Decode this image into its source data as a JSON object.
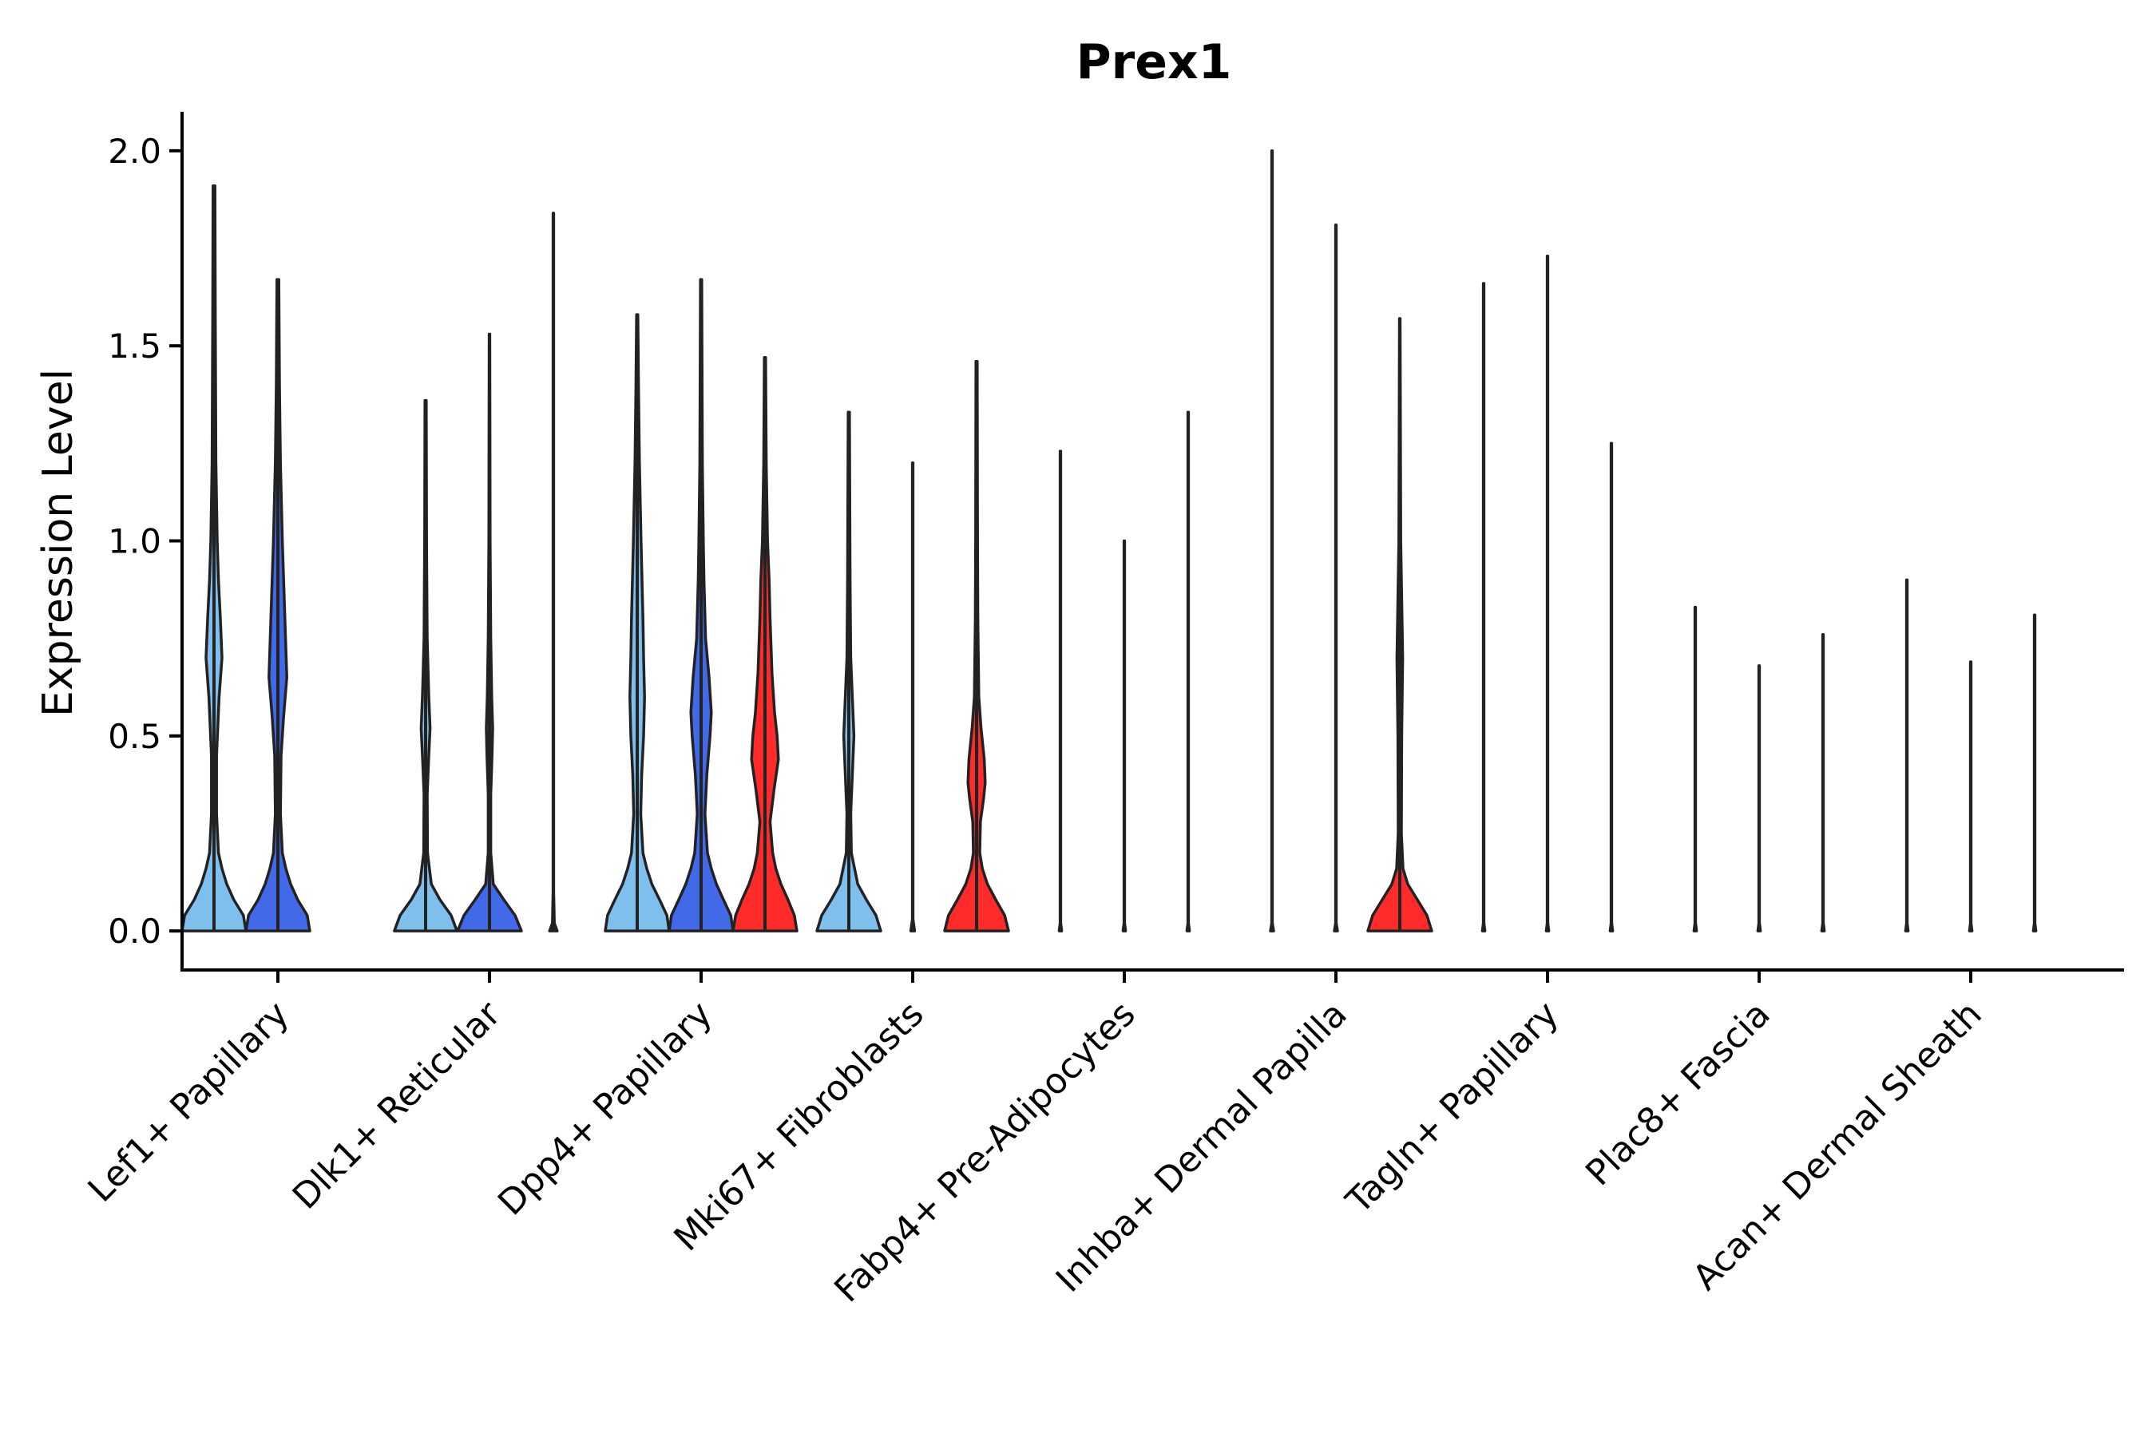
{
  "chart_data": {
    "type": "violin",
    "title": "Prex1",
    "xlabel": "",
    "ylabel": "Expression Level",
    "ylim": [
      -0.1,
      2.1
    ],
    "yticks": [
      0.0,
      0.5,
      1.0,
      1.5,
      2.0
    ],
    "ytick_labels": [
      "0.0",
      "0.5",
      "1.0",
      "1.5",
      "2.0"
    ],
    "categories": [
      "Lef1+ Papillary",
      "Dlk1+ Reticular",
      "Dpp4+ Papillary",
      "Mki67+ Fibroblasts",
      "Fabp4+ Pre-Adipocytes",
      "Inhba+ Dermal Papilla",
      "Tagln+ Papillary",
      "Plac8+ Fascia",
      "Acan+ Dermal Sheath"
    ],
    "groups": [
      {
        "name": "group-1",
        "color": "#7FBFEE"
      },
      {
        "name": "group-2",
        "color": "#4169E8"
      },
      {
        "name": "group-3",
        "color": "#FF2A2A"
      }
    ],
    "violins": [
      {
        "category": 0,
        "group": 0,
        "max": 1.91,
        "profile": [
          [
            0,
            1
          ],
          [
            0.04,
            0.92
          ],
          [
            0.08,
            0.62
          ],
          [
            0.12,
            0.4
          ],
          [
            0.16,
            0.25
          ],
          [
            0.2,
            0.14
          ],
          [
            0.3,
            0.08
          ],
          [
            0.45,
            0.08
          ],
          [
            0.6,
            0.16
          ],
          [
            0.7,
            0.25
          ],
          [
            0.8,
            0.2
          ],
          [
            0.9,
            0.14
          ],
          [
            1.0,
            0.1
          ],
          [
            1.2,
            0.06
          ],
          [
            1.4,
            0.05
          ],
          [
            1.6,
            0.04
          ],
          [
            1.91,
            0.03
          ]
        ]
      },
      {
        "category": 0,
        "group": 1,
        "max": 1.67,
        "profile": [
          [
            0,
            1
          ],
          [
            0.04,
            0.92
          ],
          [
            0.08,
            0.62
          ],
          [
            0.12,
            0.4
          ],
          [
            0.16,
            0.25
          ],
          [
            0.2,
            0.14
          ],
          [
            0.3,
            0.08
          ],
          [
            0.45,
            0.1
          ],
          [
            0.55,
            0.18
          ],
          [
            0.65,
            0.28
          ],
          [
            0.75,
            0.24
          ],
          [
            0.85,
            0.2
          ],
          [
            1.0,
            0.14
          ],
          [
            1.2,
            0.08
          ],
          [
            1.4,
            0.05
          ],
          [
            1.67,
            0.03
          ]
        ]
      },
      {
        "category": 1,
        "group": 0,
        "max": 1.36,
        "profile": [
          [
            0,
            0.98
          ],
          [
            0.04,
            0.8
          ],
          [
            0.08,
            0.45
          ],
          [
            0.12,
            0.18
          ],
          [
            0.2,
            0.06
          ],
          [
            0.35,
            0.05
          ],
          [
            0.45,
            0.1
          ],
          [
            0.52,
            0.14
          ],
          [
            0.6,
            0.1
          ],
          [
            0.75,
            0.05
          ],
          [
            1.0,
            0.03
          ],
          [
            1.36,
            0.02
          ]
        ]
      },
      {
        "category": 1,
        "group": 1,
        "max": 1.53,
        "profile": [
          [
            0,
            1
          ],
          [
            0.04,
            0.8
          ],
          [
            0.08,
            0.45
          ],
          [
            0.12,
            0.12
          ],
          [
            0.2,
            0.04
          ],
          [
            0.35,
            0.04
          ],
          [
            0.45,
            0.08
          ],
          [
            0.52,
            0.1
          ],
          [
            0.6,
            0.07
          ],
          [
            0.75,
            0.04
          ],
          [
            1.0,
            0.02
          ],
          [
            1.53,
            0.01
          ]
        ]
      },
      {
        "category": 1,
        "group": 2,
        "max": 1.84,
        "profile": [
          [
            0,
            0.12
          ],
          [
            0.02,
            0.03
          ],
          [
            0.1,
            0.01
          ],
          [
            1.84,
            0.01
          ]
        ]
      },
      {
        "category": 2,
        "group": 0,
        "max": 1.58,
        "profile": [
          [
            0,
            1
          ],
          [
            0.04,
            0.93
          ],
          [
            0.08,
            0.7
          ],
          [
            0.12,
            0.46
          ],
          [
            0.16,
            0.3
          ],
          [
            0.2,
            0.18
          ],
          [
            0.3,
            0.11
          ],
          [
            0.4,
            0.14
          ],
          [
            0.5,
            0.2
          ],
          [
            0.6,
            0.23
          ],
          [
            0.7,
            0.2
          ],
          [
            0.8,
            0.18
          ],
          [
            0.9,
            0.15
          ],
          [
            1.0,
            0.12
          ],
          [
            1.2,
            0.07
          ],
          [
            1.4,
            0.04
          ],
          [
            1.58,
            0.02
          ]
        ]
      },
      {
        "category": 2,
        "group": 1,
        "max": 1.67,
        "profile": [
          [
            0,
            1
          ],
          [
            0.04,
            0.93
          ],
          [
            0.08,
            0.7
          ],
          [
            0.12,
            0.48
          ],
          [
            0.16,
            0.32
          ],
          [
            0.2,
            0.2
          ],
          [
            0.3,
            0.12
          ],
          [
            0.4,
            0.18
          ],
          [
            0.5,
            0.28
          ],
          [
            0.56,
            0.32
          ],
          [
            0.65,
            0.25
          ],
          [
            0.75,
            0.14
          ],
          [
            0.9,
            0.09
          ],
          [
            1.0,
            0.07
          ],
          [
            1.2,
            0.04
          ],
          [
            1.67,
            0.02
          ]
        ]
      },
      {
        "category": 2,
        "group": 2,
        "max": 1.47,
        "profile": [
          [
            0,
            1
          ],
          [
            0.04,
            0.92
          ],
          [
            0.08,
            0.72
          ],
          [
            0.12,
            0.5
          ],
          [
            0.16,
            0.34
          ],
          [
            0.2,
            0.24
          ],
          [
            0.28,
            0.16
          ],
          [
            0.36,
            0.28
          ],
          [
            0.44,
            0.42
          ],
          [
            0.5,
            0.38
          ],
          [
            0.56,
            0.3
          ],
          [
            0.66,
            0.22
          ],
          [
            0.8,
            0.16
          ],
          [
            0.9,
            0.13
          ],
          [
            1.0,
            0.08
          ],
          [
            1.2,
            0.04
          ],
          [
            1.47,
            0.02
          ]
        ]
      },
      {
        "category": 3,
        "group": 0,
        "max": 1.33,
        "profile": [
          [
            0,
            1
          ],
          [
            0.04,
            0.85
          ],
          [
            0.08,
            0.55
          ],
          [
            0.12,
            0.28
          ],
          [
            0.2,
            0.08
          ],
          [
            0.3,
            0.06
          ],
          [
            0.42,
            0.12
          ],
          [
            0.5,
            0.16
          ],
          [
            0.58,
            0.12
          ],
          [
            0.7,
            0.06
          ],
          [
            0.9,
            0.04
          ],
          [
            1.33,
            0.02
          ]
        ]
      },
      {
        "category": 3,
        "group": 1,
        "max": 1.2,
        "profile": [
          [
            0,
            0.06
          ],
          [
            0.03,
            0.01
          ],
          [
            1.2,
            0.01
          ]
        ]
      },
      {
        "category": 3,
        "group": 2,
        "max": 1.46,
        "profile": [
          [
            0,
            1
          ],
          [
            0.04,
            0.88
          ],
          [
            0.08,
            0.6
          ],
          [
            0.12,
            0.34
          ],
          [
            0.16,
            0.18
          ],
          [
            0.2,
            0.1
          ],
          [
            0.28,
            0.12
          ],
          [
            0.34,
            0.22
          ],
          [
            0.38,
            0.27
          ],
          [
            0.44,
            0.24
          ],
          [
            0.52,
            0.14
          ],
          [
            0.6,
            0.07
          ],
          [
            0.8,
            0.04
          ],
          [
            1.0,
            0.03
          ],
          [
            1.46,
            0.02
          ]
        ]
      },
      {
        "category": 4,
        "group": 0,
        "max": 1.23,
        "profile": [
          [
            0,
            0.04
          ],
          [
            0.02,
            0.01
          ],
          [
            1.23,
            0.01
          ]
        ]
      },
      {
        "category": 4,
        "group": 1,
        "max": 1.0,
        "profile": [
          [
            0,
            0.04
          ],
          [
            0.02,
            0.01
          ],
          [
            1.0,
            0.01
          ]
        ]
      },
      {
        "category": 4,
        "group": 2,
        "max": 1.33,
        "profile": [
          [
            0,
            0.04
          ],
          [
            0.02,
            0.01
          ],
          [
            1.33,
            0.01
          ]
        ]
      },
      {
        "category": 5,
        "group": 0,
        "max": 2.0,
        "profile": [
          [
            0,
            0.05
          ],
          [
            0.02,
            0.01
          ],
          [
            2.0,
            0.01
          ]
        ]
      },
      {
        "category": 5,
        "group": 1,
        "max": 1.81,
        "profile": [
          [
            0,
            0.05
          ],
          [
            0.02,
            0.01
          ],
          [
            1.81,
            0.01
          ]
        ]
      },
      {
        "category": 5,
        "group": 2,
        "max": 1.57,
        "profile": [
          [
            0,
            1
          ],
          [
            0.04,
            0.85
          ],
          [
            0.08,
            0.55
          ],
          [
            0.12,
            0.25
          ],
          [
            0.16,
            0.1
          ],
          [
            0.25,
            0.05
          ],
          [
            0.5,
            0.06
          ],
          [
            0.7,
            0.09
          ],
          [
            0.8,
            0.07
          ],
          [
            1.0,
            0.03
          ],
          [
            1.57,
            0.01
          ]
        ]
      },
      {
        "category": 6,
        "group": 0,
        "max": 1.66,
        "profile": [
          [
            0,
            0.04
          ],
          [
            0.02,
            0.01
          ],
          [
            1.66,
            0.01
          ]
        ]
      },
      {
        "category": 6,
        "group": 1,
        "max": 1.73,
        "profile": [
          [
            0,
            0.04
          ],
          [
            0.02,
            0.01
          ],
          [
            1.73,
            0.01
          ]
        ]
      },
      {
        "category": 6,
        "group": 2,
        "max": 1.25,
        "profile": [
          [
            0,
            0.04
          ],
          [
            0.02,
            0.01
          ],
          [
            1.25,
            0.01
          ]
        ]
      },
      {
        "category": 7,
        "group": 0,
        "max": 0.83,
        "profile": [
          [
            0,
            0.04
          ],
          [
            0.02,
            0.01
          ],
          [
            0.83,
            0.01
          ]
        ]
      },
      {
        "category": 7,
        "group": 1,
        "max": 0.68,
        "profile": [
          [
            0,
            0.04
          ],
          [
            0.02,
            0.01
          ],
          [
            0.68,
            0.01
          ]
        ]
      },
      {
        "category": 7,
        "group": 2,
        "max": 0.76,
        "profile": [
          [
            0,
            0.04
          ],
          [
            0.02,
            0.01
          ],
          [
            0.76,
            0.01
          ]
        ]
      },
      {
        "category": 8,
        "group": 0,
        "max": 0.9,
        "profile": [
          [
            0,
            0.04
          ],
          [
            0.02,
            0.01
          ],
          [
            0.9,
            0.01
          ]
        ]
      },
      {
        "category": 8,
        "group": 1,
        "max": 0.69,
        "profile": [
          [
            0,
            0.04
          ],
          [
            0.02,
            0.01
          ],
          [
            0.69,
            0.01
          ]
        ]
      },
      {
        "category": 8,
        "group": 2,
        "max": 0.81,
        "profile": [
          [
            0,
            0.04
          ],
          [
            0.02,
            0.01
          ],
          [
            0.81,
            0.01
          ]
        ]
      }
    ],
    "grid": false,
    "legend": "none"
  }
}
